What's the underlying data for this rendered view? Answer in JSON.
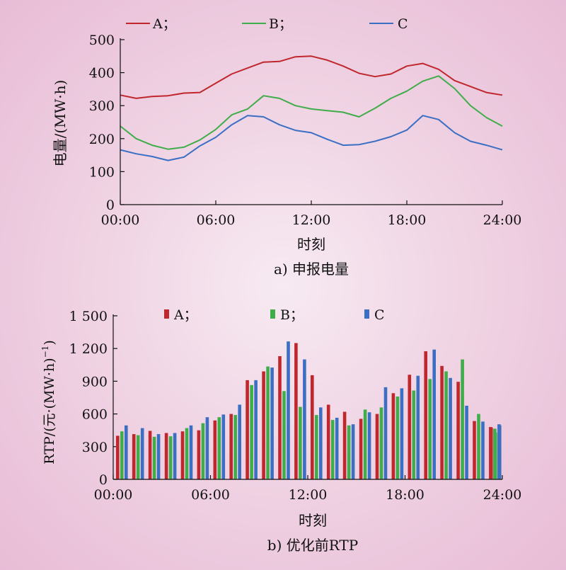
{
  "colors": {
    "A": "#c0272d",
    "B": "#3fad49",
    "C": "#3a6fc4",
    "axis": "#111111"
  },
  "chart_data": [
    {
      "type": "line",
      "caption": "a) 申报电量",
      "xlabel": "时刻",
      "ylabel": "电量/(MW·h)",
      "ylim": [
        0,
        500
      ],
      "yticks": [
        0,
        100,
        200,
        300,
        400,
        500
      ],
      "xlim": [
        0,
        24
      ],
      "xticks": [
        0,
        6,
        12,
        18,
        24
      ],
      "xtick_labels": [
        "00:00",
        "06:00",
        "12:00",
        "18:00",
        "24:00"
      ],
      "legend_position": "top",
      "x": [
        0,
        1,
        2,
        3,
        4,
        5,
        6,
        7,
        8,
        9,
        10,
        11,
        12,
        13,
        14,
        15,
        16,
        17,
        18,
        19,
        20,
        21,
        22,
        23,
        24
      ],
      "series": [
        {
          "name": "A；",
          "key": "A",
          "values": [
            332,
            322,
            328,
            330,
            338,
            340,
            368,
            396,
            414,
            432,
            434,
            448,
            450,
            438,
            420,
            398,
            388,
            396,
            420,
            428,
            410,
            376,
            358,
            340,
            332
          ]
        },
        {
          "name": "B；",
          "key": "B",
          "values": [
            238,
            200,
            180,
            168,
            174,
            196,
            228,
            272,
            290,
            330,
            322,
            300,
            290,
            285,
            280,
            266,
            292,
            322,
            344,
            374,
            390,
            352,
            300,
            264,
            238
          ]
        },
        {
          "name": "C",
          "key": "C",
          "values": [
            166,
            154,
            146,
            134,
            144,
            178,
            204,
            242,
            270,
            266,
            242,
            225,
            218,
            198,
            180,
            182,
            192,
            206,
            226,
            270,
            258,
            218,
            192,
            180,
            166
          ]
        }
      ]
    },
    {
      "type": "bar",
      "caption": "b) 优化前RTP",
      "xlabel": "时刻",
      "ylabel": "RTP/(元·(MW·h)",
      "ylabel_sup": "−1",
      "ylabel_tail": ")",
      "ylim": [
        0,
        1500
      ],
      "yticks": [
        0,
        300,
        600,
        900,
        1200,
        1500
      ],
      "ytick_labels": [
        "0",
        "300",
        "600",
        "900",
        "1 200",
        "1 500"
      ],
      "xlim": [
        0,
        24
      ],
      "xticks": [
        0,
        6,
        12,
        18,
        24
      ],
      "xtick_labels": [
        "00:00",
        "06:00",
        "12:00",
        "18:00",
        "24:00"
      ],
      "legend_position": "top",
      "categories": [
        0,
        1,
        2,
        3,
        4,
        5,
        6,
        7,
        8,
        9,
        10,
        11,
        12,
        13,
        14,
        15,
        16,
        17,
        18,
        19,
        20,
        21,
        22,
        23
      ],
      "series": [
        {
          "name": "A；",
          "key": "A",
          "values": [
            400,
            415,
            445,
            425,
            440,
            450,
            540,
            600,
            910,
            990,
            1130,
            1250,
            955,
            685,
            620,
            555,
            600,
            790,
            960,
            1175,
            1040,
            895,
            535,
            480
          ]
        },
        {
          "name": "B；",
          "key": "B",
          "values": [
            440,
            405,
            390,
            395,
            470,
            515,
            570,
            590,
            865,
            1035,
            810,
            665,
            590,
            545,
            495,
            640,
            660,
            760,
            815,
            920,
            990,
            1100,
            600,
            465
          ]
        },
        {
          "name": "C",
          "key": "C",
          "values": [
            495,
            470,
            415,
            425,
            495,
            570,
            595,
            685,
            910,
            1025,
            1265,
            1100,
            660,
            565,
            505,
            615,
            845,
            835,
            950,
            1190,
            930,
            675,
            530,
            505
          ]
        }
      ],
      "last_bars": {
        "A": 475,
        "B": 430,
        "C": 495
      }
    }
  ]
}
